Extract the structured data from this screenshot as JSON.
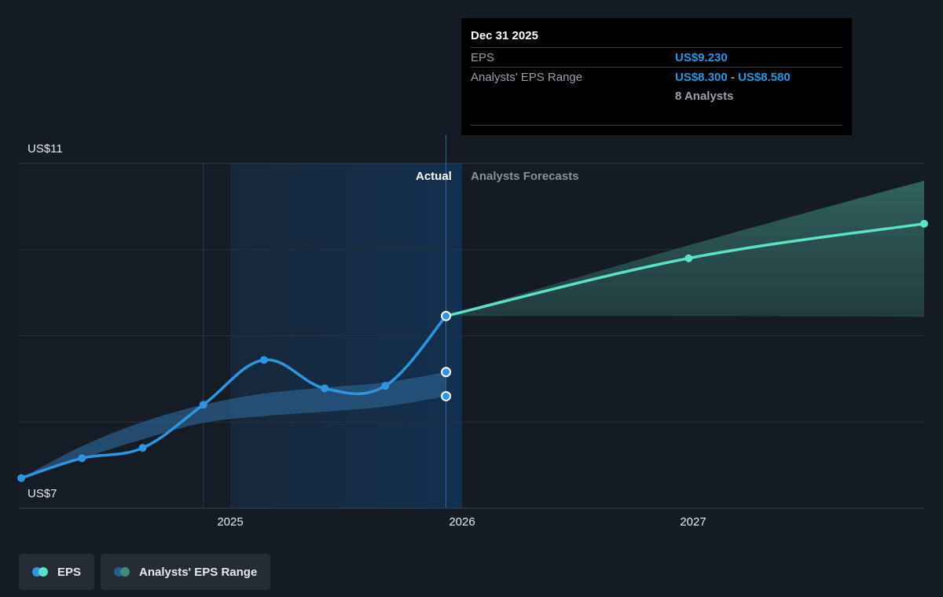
{
  "chart_data": {
    "type": "line",
    "y_axis": {
      "min": 7,
      "max": 11,
      "labels": [
        "US$11",
        "US$7"
      ]
    },
    "x_axis": {
      "ticks": [
        {
          "label": "2025",
          "value": 2025.0
        },
        {
          "label": "2026",
          "value": 2026.0
        },
        {
          "label": "2027",
          "value": 2027.0
        }
      ],
      "range": [
        2024.24,
        2027.97
      ]
    },
    "sections": {
      "actual": "Actual",
      "forecast": "Analysts Forecasts"
    },
    "grid": true,
    "series": [
      {
        "name": "EPS",
        "color": "#2f95e0",
        "points": [
          [
            2024.25,
            7.35
          ],
          [
            2024.5,
            7.58
          ],
          [
            2024.75,
            7.7
          ],
          [
            2025.0,
            8.2
          ],
          [
            2025.25,
            8.72
          ],
          [
            2025.5,
            8.39
          ],
          [
            2025.75,
            8.42
          ],
          [
            2026.0,
            9.23
          ]
        ]
      },
      {
        "name": "EPS",
        "color": "#5ce0c8",
        "points": [
          [
            2026.0,
            9.23
          ],
          [
            2027.0,
            9.9
          ],
          [
            2027.97,
            10.3
          ]
        ]
      },
      {
        "name": "Analysts' EPS Range",
        "color": "#2f95e0",
        "type": "area",
        "upper": [
          [
            2024.25,
            7.35
          ],
          [
            2024.5,
            7.72
          ],
          [
            2024.75,
            8.0
          ],
          [
            2025.0,
            8.2
          ],
          [
            2025.25,
            8.33
          ],
          [
            2025.5,
            8.4
          ],
          [
            2025.75,
            8.46
          ],
          [
            2026.0,
            8.58
          ]
        ],
        "lower": [
          [
            2024.25,
            7.35
          ],
          [
            2024.5,
            7.58
          ],
          [
            2024.75,
            7.8
          ],
          [
            2025.0,
            7.99
          ],
          [
            2025.25,
            8.07
          ],
          [
            2025.5,
            8.12
          ],
          [
            2025.75,
            8.18
          ],
          [
            2026.0,
            8.3
          ]
        ]
      },
      {
        "name": "Analysts' EPS Range",
        "color": "#5ce0c8",
        "type": "area",
        "upper": [
          [
            2026.0,
            9.23
          ],
          [
            2027.0,
            10.05
          ],
          [
            2027.97,
            10.8
          ]
        ],
        "lower": [
          [
            2026.0,
            9.23
          ],
          [
            2027.0,
            9.23
          ],
          [
            2027.97,
            9.22
          ]
        ]
      }
    ]
  },
  "tooltip": {
    "date": "Dec 31 2025",
    "eps_label": "EPS",
    "eps_value": "US$9.230",
    "range_label": "Analysts' EPS Range",
    "range_low": "US$8.300",
    "range_sep": " - ",
    "range_high": "US$8.580",
    "analysts": "8 Analysts"
  },
  "legend": {
    "items": [
      {
        "label": "EPS",
        "colors": [
          "#2f95e0",
          "#5ce0c8"
        ]
      },
      {
        "label": "Analysts' EPS Range",
        "colors": [
          "#2a5b86",
          "#3f8b7e"
        ]
      }
    ]
  }
}
